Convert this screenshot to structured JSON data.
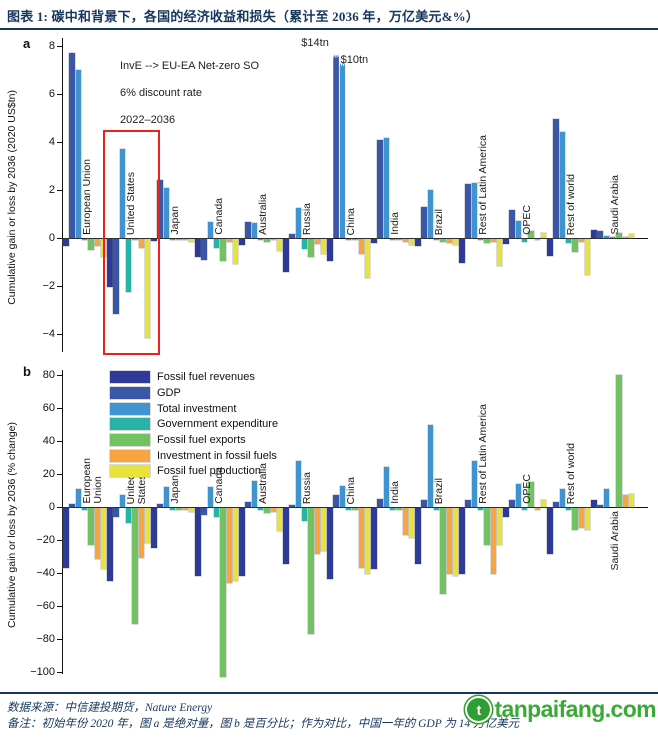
{
  "header": {
    "title": "图表 1: 碳中和背景下，各国的经济收益和损失（累计至 2036 年，万亿美元&%）"
  },
  "footer": {
    "source_line": "数据来源：中信建投期货，Nature Energy",
    "note_line": "备注：初始年份 2020 年，图 a 是绝对量，图 b 是百分比；作为对比，中国一年的 GDP 为 14 万亿美元",
    "watermark_text": "tanpaifang.com",
    "watermark_color": "#3aa935"
  },
  "chart_data": [
    {
      "type": "bar",
      "panel_label": "a",
      "ylabel": "Cumulative gain or loss by 2036 (2020 US$tn)",
      "ylim": [
        -4.8,
        8.3
      ],
      "yticks": [
        8,
        6,
        4,
        2,
        0,
        -2,
        -4
      ],
      "grid": false,
      "legend": false,
      "annotations": [
        "InvE --> EU-EA Net-zero SO",
        "6% discount rate",
        "2022–2036"
      ],
      "highlight_category": "United States",
      "highlight_color": "#e8231a",
      "categories": [
        "European Union",
        "United States",
        "Japan",
        "Canada",
        "Australia",
        "Russia",
        "China",
        "India",
        "Brazil",
        "Rest of Latin America",
        "OPEC",
        "Rest of world",
        "Saudi Arabia"
      ],
      "series": [
        {
          "name": "Fossil fuel revenues",
          "color": "#2e3a97",
          "values": [
            -0.3,
            -2.0,
            -0.08,
            -0.75,
            -0.25,
            -1.35,
            -0.9,
            -0.15,
            -0.3,
            -1.0,
            -0.2,
            -0.7,
            0.35
          ]
        },
        {
          "name": "GDP",
          "color": "#3a56a7",
          "values": [
            7.7,
            -3.1,
            2.4,
            -0.85,
            0.67,
            0.15,
            14,
            4.1,
            1.3,
            2.25,
            1.15,
            4.95,
            0.28
          ]
        },
        {
          "name": "Total investment",
          "color": "#3e93d0",
          "values": [
            7.0,
            3.7,
            2.1,
            0.67,
            0.64,
            1.25,
            10,
            4.15,
            2.0,
            2.3,
            0.7,
            4.4,
            0.1
          ]
        },
        {
          "name": "Government expenditure",
          "color": "#27b3a8",
          "values": [
            -0.05,
            -2.2,
            -0.05,
            -0.35,
            -0.05,
            -0.4,
            -0.05,
            -0.03,
            -0.05,
            -0.05,
            -0.1,
            -0.15,
            0.03
          ]
        },
        {
          "name": "Fossil fuel exports",
          "color": "#72c162",
          "values": [
            -0.45,
            -0.05,
            -0.03,
            -0.9,
            -0.1,
            -0.75,
            -0.05,
            -0.03,
            -0.1,
            -0.15,
            0.3,
            -0.55,
            0.2
          ]
        },
        {
          "name": "Investment in fossil fuels",
          "color": "#f7a541",
          "values": [
            -0.3,
            -0.35,
            -0.05,
            -0.1,
            -0.05,
            -0.2,
            -0.6,
            -0.1,
            -0.15,
            -0.1,
            -0.05,
            -0.1,
            0.05
          ]
        },
        {
          "name": "Fossil fuel production",
          "color": "#e7e33c",
          "values": [
            -0.75,
            -4.1,
            -0.1,
            -1.05,
            -0.5,
            -0.6,
            -1.6,
            -0.25,
            -0.25,
            -1.1,
            0.2,
            -1.5,
            0.15
          ]
        }
      ],
      "truncated": [
        {
          "category": "China",
          "series": "GDP",
          "label": "$14tn",
          "display_value": 7.65
        },
        {
          "category": "China",
          "series": "Total investment",
          "label": "$10tn",
          "display_value": 7.3
        }
      ]
    },
    {
      "type": "bar",
      "panel_label": "b",
      "ylabel": "Cumulative gain or loss by 2036 (% change)",
      "ylim": [
        -104,
        84
      ],
      "yticks": [
        80,
        60,
        40,
        20,
        0,
        -20,
        -40,
        -60,
        -80,
        -100
      ],
      "grid": false,
      "legend": true,
      "legend_position": "top-left",
      "categories": [
        "European Union",
        "United States",
        "Japan",
        "Canada",
        "Australia",
        "Russia",
        "China",
        "India",
        "Brazil",
        "Rest of Latin America",
        "OPEC",
        "Rest of world",
        "Saudi Arabia"
      ],
      "wrapped_labels": {
        "European Union": [
          "European",
          "Union"
        ],
        "United States": [
          "United",
          "States"
        ]
      },
      "labels_below_axis": [
        "Saudi Arabia"
      ],
      "series": [
        {
          "name": "Fossil fuel revenues",
          "color": "#2e3a97",
          "values": [
            -36,
            -44,
            -24,
            -41,
            -41,
            -34,
            -43,
            -37,
            -34,
            -40,
            -5,
            -28,
            4
          ]
        },
        {
          "name": "GDP",
          "color": "#3a56a7",
          "values": [
            2,
            -5,
            2,
            -4,
            3,
            1,
            7,
            5,
            4,
            4,
            4,
            3,
            1
          ]
        },
        {
          "name": "Total investment",
          "color": "#3e93d0",
          "values": [
            11,
            7,
            12,
            12,
            16,
            28,
            13,
            24,
            50,
            28,
            14,
            11,
            11
          ]
        },
        {
          "name": "Government expenditure",
          "color": "#27b3a8",
          "values": [
            -1,
            -9,
            -1,
            -5,
            -1,
            -8,
            -1,
            -1,
            -1,
            -1,
            -1,
            -1,
            0
          ]
        },
        {
          "name": "Fossil fuel exports",
          "color": "#72c162",
          "values": [
            -22,
            -70,
            -1,
            -102,
            -3,
            -76,
            -1,
            -1,
            -52,
            -22,
            15,
            -13,
            80
          ]
        },
        {
          "name": "Investment in fossil fuels",
          "color": "#f7a541",
          "values": [
            -31,
            -30,
            -1,
            -45,
            -2,
            -28,
            -36,
            -16,
            -40,
            -40,
            -1,
            -12,
            7
          ]
        },
        {
          "name": "Fossil fuel production",
          "color": "#e7e33c",
          "values": [
            -37,
            -21,
            -2,
            -44,
            -14,
            -26,
            -40,
            -18,
            -41,
            -22,
            4,
            -13,
            8
          ]
        }
      ]
    }
  ]
}
